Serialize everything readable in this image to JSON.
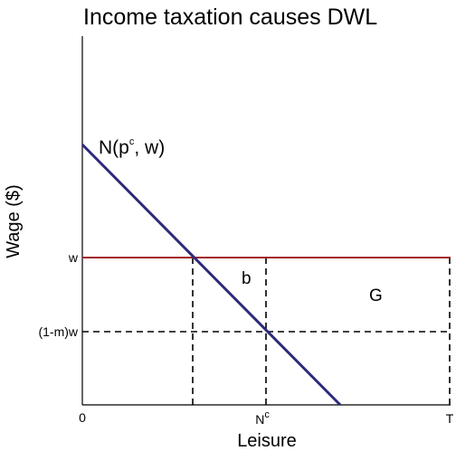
{
  "title": "Income taxation causes DWL",
  "axes": {
    "xlabel": "Leisure",
    "ylabel": "Wage ($)"
  },
  "ticks": {
    "x_origin": "0",
    "x_nc_base": "N",
    "x_nc_sup": "c",
    "x_end": "T",
    "y_w": "w",
    "y_taxed": "(1-m)w"
  },
  "curves": {
    "demand_base": "N",
    "demand_open": "(p",
    "demand_sup": "c",
    "demand_close": ", w)"
  },
  "regions": {
    "b": "b",
    "G": "G"
  },
  "colors": {
    "demand_line": "#2e2a7a",
    "wage_line": "#a3202a",
    "dashed": "#000000",
    "axis": "#000000"
  }
}
